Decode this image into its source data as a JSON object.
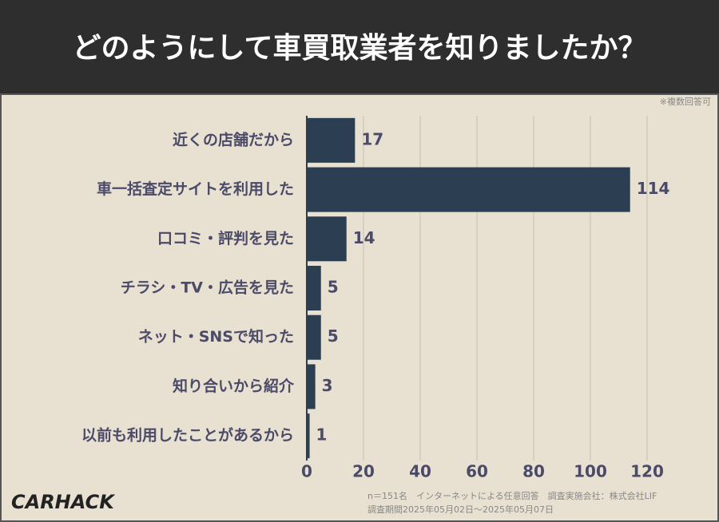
{
  "chart_data": {
    "type": "bar",
    "orientation": "horizontal",
    "title": "どのようにして車買取業者を知りましたか？",
    "note": "※複数回答可",
    "categories": [
      "近くの店舗だから",
      "車一括査定サイトを利用した",
      "口コミ・評判を見た",
      "チラシ・TV・広告を見た",
      "ネット・SNSで知った",
      "知り合いから紹介",
      "以前も利用したことがあるから"
    ],
    "values": [
      17,
      114,
      14,
      5,
      5,
      3,
      1
    ],
    "color": "#2c3e52",
    "xlim": [
      0,
      120
    ],
    "xticks": [
      0,
      20,
      40,
      60,
      80,
      100,
      120
    ],
    "grid": true,
    "footnotes": [
      "n＝151名　インターネットによる任意回答　調査実施会社：株式会社LIF",
      "調査期間2025年05月02日〜2025年05月07日"
    ],
    "logo": "CARHACK"
  }
}
